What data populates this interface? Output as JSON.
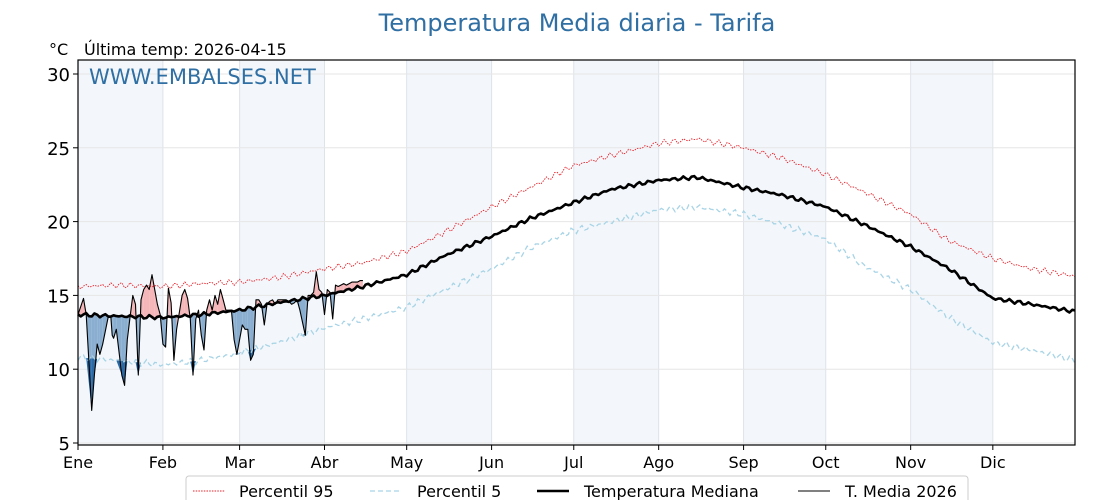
{
  "chart_data": {
    "type": "line",
    "title": "Temperatura Media diaria - Tarifa",
    "unit_label": "°C",
    "subtitle": "Última temp: 2026-04-15",
    "watermark": "WWW.EMBALSES.NET",
    "xlabel": "",
    "ylabel": "°C",
    "ylim": [
      5,
      30.8
    ],
    "xlim_days": [
      1,
      365
    ],
    "grid": true,
    "legend_position": "bottom-center",
    "yticks": [
      {
        "value": 5,
        "label": "5"
      },
      {
        "value": 10,
        "label": "10"
      },
      {
        "value": 15,
        "label": "15"
      },
      {
        "value": 20,
        "label": "20"
      },
      {
        "value": 25,
        "label": "25"
      },
      {
        "value": 30,
        "label": "30"
      }
    ],
    "months": [
      {
        "label": "Ene",
        "start_day": 1,
        "shaded": true
      },
      {
        "label": "Feb",
        "start_day": 32,
        "shaded": false
      },
      {
        "label": "Mar",
        "start_day": 60,
        "shaded": true
      },
      {
        "label": "Abr",
        "start_day": 91,
        "shaded": false
      },
      {
        "label": "May",
        "start_day": 121,
        "shaded": true
      },
      {
        "label": "Jun",
        "start_day": 152,
        "shaded": false
      },
      {
        "label": "Jul",
        "start_day": 182,
        "shaded": true
      },
      {
        "label": "Ago",
        "start_day": 213,
        "shaded": false
      },
      {
        "label": "Sep",
        "start_day": 244,
        "shaded": true
      },
      {
        "label": "Oct",
        "start_day": 274,
        "shaded": false
      },
      {
        "label": "Nov",
        "start_day": 305,
        "shaded": true
      },
      {
        "label": "Dic",
        "start_day": 335,
        "shaded": false
      }
    ],
    "series": [
      {
        "name": "Percentil 95",
        "key": "p95",
        "color": "#e8222a",
        "style": "dotted",
        "x_day": [
          1,
          15,
          32,
          46,
          60,
          74,
          91,
          105,
          121,
          135,
          152,
          166,
          182,
          196,
          213,
          227,
          244,
          258,
          274,
          288,
          305,
          319,
          335,
          349,
          365
        ],
        "values": [
          15.6,
          15.7,
          15.6,
          15.8,
          15.9,
          16.2,
          16.8,
          17.2,
          18.0,
          19.3,
          21.0,
          22.3,
          23.8,
          24.5,
          25.3,
          25.6,
          25.0,
          24.3,
          23.2,
          22.0,
          20.5,
          18.7,
          17.5,
          16.8,
          16.3
        ]
      },
      {
        "name": "Percentil 5",
        "key": "p5",
        "color": "#a8d4e6",
        "style": "dashed",
        "x_day": [
          1,
          15,
          32,
          46,
          60,
          74,
          91,
          105,
          121,
          135,
          152,
          166,
          182,
          196,
          213,
          227,
          244,
          258,
          274,
          288,
          305,
          319,
          335,
          349,
          365
        ],
        "values": [
          10.8,
          10.6,
          10.3,
          10.6,
          11.1,
          11.8,
          12.8,
          13.4,
          14.2,
          15.4,
          16.8,
          18.2,
          19.4,
          20.0,
          20.8,
          21.0,
          20.5,
          19.8,
          18.8,
          17.0,
          15.4,
          13.5,
          11.8,
          11.3,
          10.6
        ]
      },
      {
        "name": "Temperatura Mediana",
        "key": "median",
        "color": "#000000",
        "style": "solid-thick",
        "x_day": [
          1,
          15,
          32,
          46,
          60,
          74,
          91,
          105,
          121,
          135,
          152,
          166,
          182,
          196,
          213,
          227,
          244,
          258,
          274,
          288,
          305,
          319,
          335,
          349,
          365
        ],
        "values": [
          13.7,
          13.6,
          13.5,
          13.7,
          14.0,
          14.5,
          15.0,
          15.6,
          16.4,
          17.7,
          19.0,
          20.2,
          21.3,
          22.2,
          22.8,
          23.0,
          22.3,
          21.8,
          21.0,
          19.8,
          18.3,
          16.8,
          14.8,
          14.4,
          13.9
        ]
      },
      {
        "name": "T. Media 2026",
        "key": "current",
        "color": "#000000",
        "style": "solid-thin",
        "x_day": [
          1,
          3,
          4,
          6,
          7,
          8,
          9,
          10,
          12,
          13,
          13.5,
          14,
          15,
          17,
          18,
          19,
          20,
          21,
          22,
          23,
          24,
          25,
          26,
          27,
          28,
          29,
          30,
          31,
          32,
          33,
          34,
          35,
          36,
          37,
          39,
          40,
          41,
          42,
          43,
          44,
          45,
          46,
          47,
          48,
          49,
          50,
          51,
          52,
          53,
          54,
          55,
          56,
          57,
          58,
          59,
          61,
          62,
          63,
          64,
          65,
          66,
          67,
          68,
          69,
          70,
          71,
          72,
          73,
          74,
          75,
          76,
          77,
          78,
          79,
          80,
          81,
          82,
          84,
          85,
          86,
          87,
          88,
          89,
          90,
          91,
          92,
          93,
          94,
          95,
          96,
          97,
          98,
          99,
          100,
          101,
          102,
          103,
          104,
          105
        ],
        "values": [
          13.7,
          14.8,
          13.7,
          7.2,
          9.6,
          11.7,
          11.0,
          11.7,
          13.5,
          13.5,
          12.3,
          12.1,
          12.7,
          9.6,
          8.9,
          12.0,
          13.5,
          15.0,
          14.4,
          9.6,
          14.7,
          15.4,
          15.7,
          15.4,
          16.4,
          15.4,
          14.4,
          13.7,
          11.7,
          11.5,
          15.5,
          14.5,
          10.6,
          12.7,
          15.0,
          15.4,
          14.8,
          13.4,
          9.6,
          13.4,
          14.0,
          12.3,
          11.3,
          14.0,
          14.7,
          14.0,
          15.0,
          14.4,
          15.4,
          14.7,
          14.0,
          14.0,
          14.0,
          12.0,
          11.0,
          13.0,
          12.7,
          12.7,
          10.6,
          11.0,
          14.7,
          14.7,
          14.4,
          13.0,
          14.4,
          14.6,
          14.7,
          14.4,
          14.7,
          14.7,
          14.7,
          14.7,
          14.6,
          14.4,
          14.5,
          14.7,
          14.0,
          12.3,
          15.0,
          15.0,
          15.2,
          16.6,
          15.4,
          15.2,
          13.7,
          15.4,
          15.2,
          13.4,
          15.7,
          15.6,
          15.7,
          15.8,
          15.7,
          15.8,
          15.9,
          15.9,
          15.9,
          16.0,
          16.0
        ]
      }
    ],
    "fill_colors": {
      "above_median": "#f4b6b8",
      "below_median": "#8aaed0",
      "below_p5": "#2c6aa5"
    },
    "legend": [
      {
        "label": "Percentil 95",
        "key": "p95"
      },
      {
        "label": "Percentil 5",
        "key": "p5"
      },
      {
        "label": "Temperatura Mediana",
        "key": "median"
      },
      {
        "label": "T. Media 2026",
        "key": "current"
      }
    ]
  }
}
